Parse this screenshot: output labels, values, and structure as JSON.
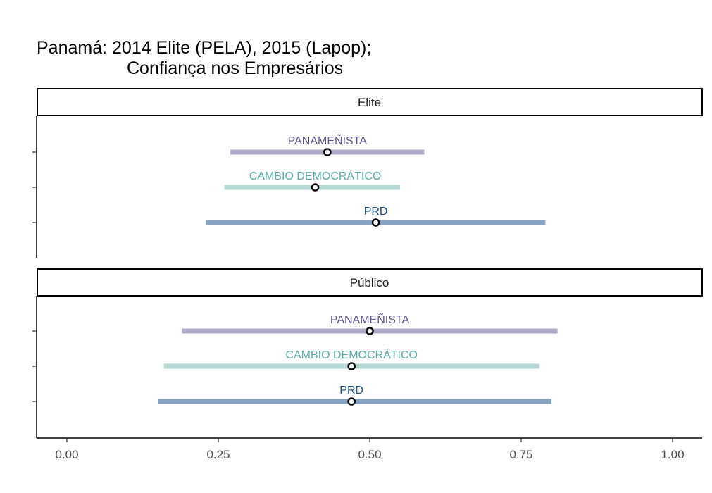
{
  "chart_data": {
    "type": "dot-range",
    "title_lines": [
      "Panamá: 2014 Elite (PELA), 2015 (Lapop);",
      "Confiança nos Empresários"
    ],
    "xlim": [
      0,
      1
    ],
    "x_ticks": [
      0,
      0.25,
      0.5,
      0.75,
      1
    ],
    "x_tick_labels": [
      "0.00",
      "0.25",
      "0.50",
      "0.75",
      "1.00"
    ],
    "xlabel": "",
    "ylabel": "",
    "grid": false,
    "colors": {
      "PANAMEÑISTA": {
        "bar": "#aeaac8",
        "label": "#5e5290"
      },
      "CAMBIO DEMOCRÁTICO": {
        "bar": "#b5d8d5",
        "label": "#5aada8"
      },
      "PRD": {
        "bar": "#87a3c4",
        "label": "#1a4f8a"
      }
    },
    "panels": [
      {
        "name": "Elite",
        "series": [
          {
            "name": "PANAMEÑISTA",
            "estimate": 0.43,
            "low": 0.27,
            "high": 0.59
          },
          {
            "name": "CAMBIO DEMOCRÁTICO",
            "estimate": 0.41,
            "low": 0.26,
            "high": 0.55
          },
          {
            "name": "PRD",
            "estimate": 0.51,
            "low": 0.23,
            "high": 0.79
          }
        ]
      },
      {
        "name": "Público",
        "series": [
          {
            "name": "PANAMEÑISTA",
            "estimate": 0.5,
            "low": 0.19,
            "high": 0.81
          },
          {
            "name": "CAMBIO DEMOCRÁTICO",
            "estimate": 0.47,
            "low": 0.16,
            "high": 0.78
          },
          {
            "name": "PRD",
            "estimate": 0.47,
            "low": 0.15,
            "high": 0.8
          }
        ]
      }
    ]
  }
}
